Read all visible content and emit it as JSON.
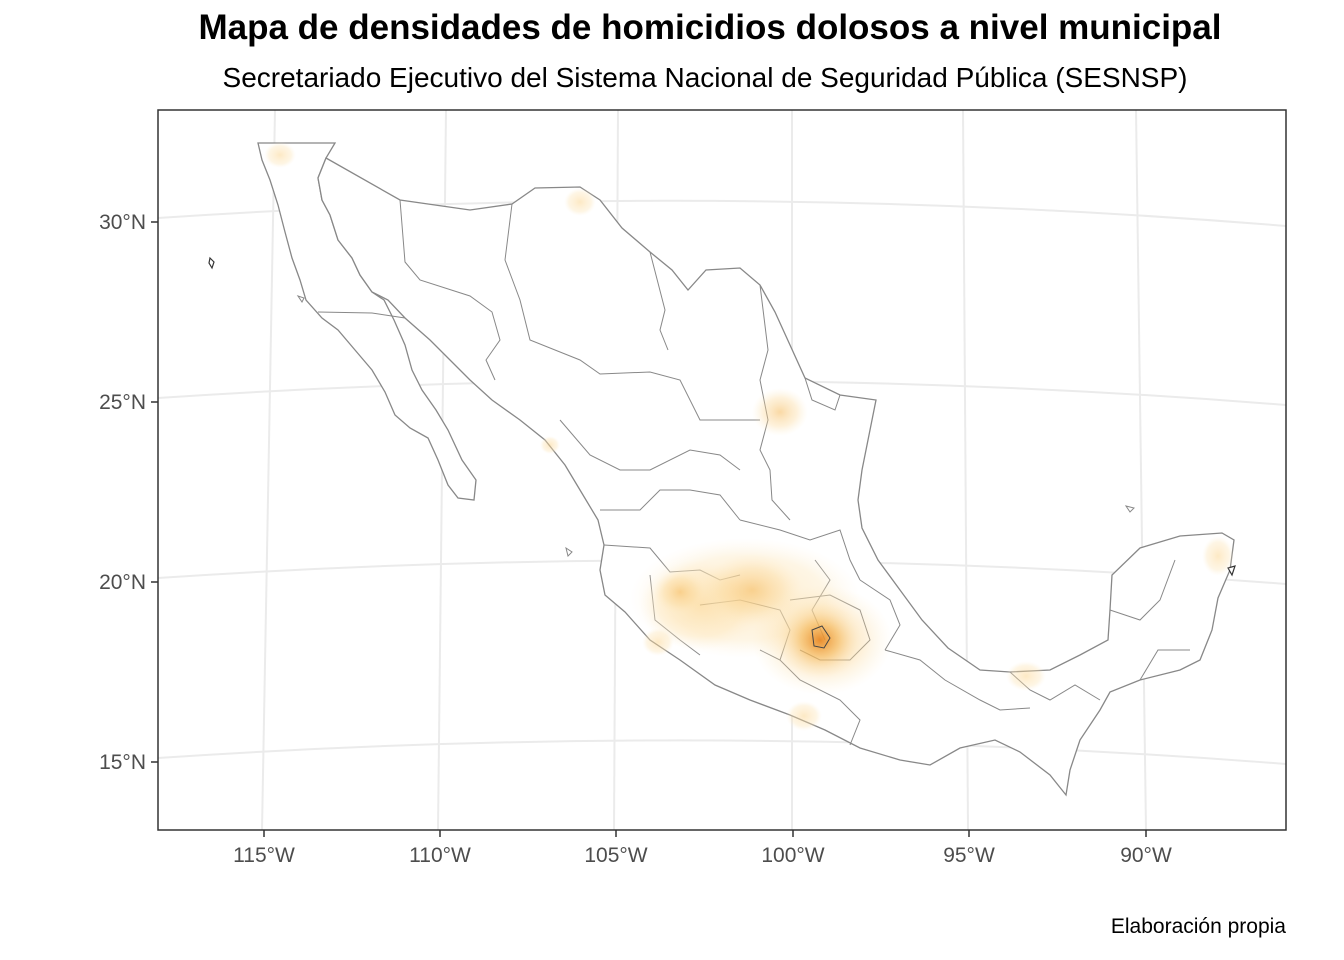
{
  "title": "Mapa de densidades de homicidios dolosos a nivel municipal",
  "subtitle": "Secretariado Ejecutivo del Sistema Nacional de Seguridad Pública (SESNSP)",
  "caption": "Elaboración propia",
  "map": {
    "region": "Mexico",
    "layer": "municipal homicide density",
    "colors": {
      "background": "#ffffff",
      "border": "#888888",
      "grid": "#ebebeb",
      "density_low": "#fde9c0",
      "density_mid": "#f7c36b",
      "density_high": "#e6801a"
    },
    "lon_ticks": [
      "115°W",
      "110°W",
      "105°W",
      "100°W",
      "95°W",
      "90°W"
    ],
    "lat_ticks": [
      "30°N",
      "25°N",
      "20°N",
      "15°N"
    ],
    "hotspots": [
      {
        "lon": -99.2,
        "lat": 18.7,
        "intensity": 1.0
      },
      {
        "lon": -101.3,
        "lat": 19.8,
        "intensity": 0.55
      },
      {
        "lon": -103.2,
        "lat": 19.7,
        "intensity": 0.35
      },
      {
        "lon": -100.5,
        "lat": 24.8,
        "intensity": 0.35
      },
      {
        "lon": -106.0,
        "lat": 30.5,
        "intensity": 0.25
      },
      {
        "lon": -114.5,
        "lat": 32.0,
        "intensity": 0.25
      },
      {
        "lon": -103.6,
        "lat": 18.2,
        "intensity": 0.25
      },
      {
        "lon": -99.8,
        "lat": 16.3,
        "intensity": 0.25
      },
      {
        "lon": -93.3,
        "lat": 17.2,
        "intensity": 0.25
      },
      {
        "lon": -87.4,
        "lat": 20.7,
        "intensity": 0.25
      },
      {
        "lon": -106.8,
        "lat": 23.8,
        "intensity": 0.15
      }
    ]
  }
}
